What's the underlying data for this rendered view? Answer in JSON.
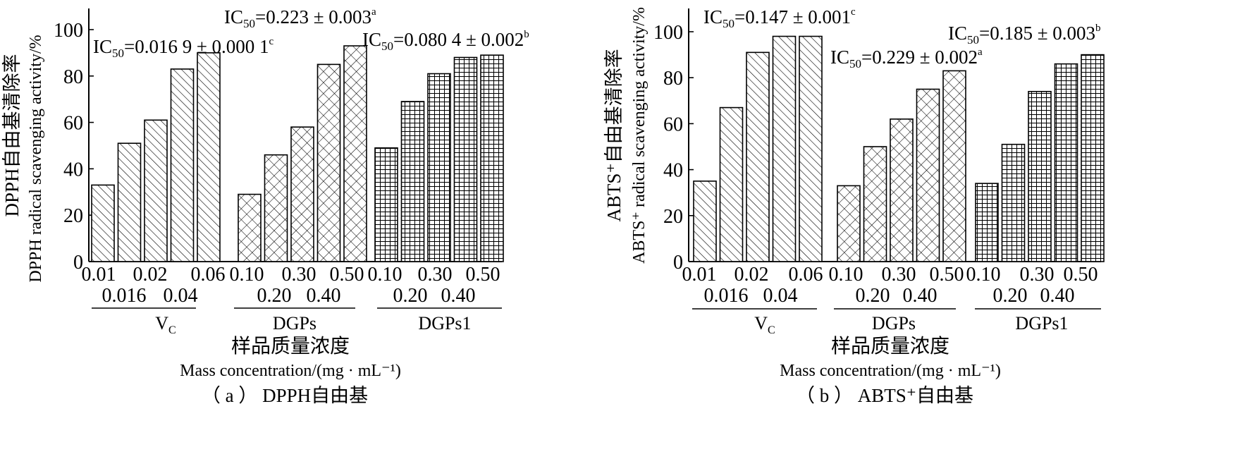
{
  "chart_data": [
    {
      "type": "bar",
      "caption": "（ a ） DPPH自由基",
      "ylabel_cn": "DPPH自由基清除率",
      "ylabel_en": "DPPH radical scavenging activity/%",
      "xlabel_cn": "样品质量浓度",
      "xlabel_en": "Mass concentration/(mg · mL⁻¹)",
      "ylim": [
        0,
        110
      ],
      "yticks": [
        0,
        20,
        40,
        60,
        80,
        100
      ],
      "groups": [
        {
          "name": "VC",
          "name_main": "V",
          "name_sub": "C",
          "pattern": "diag",
          "concentrations_row1": [
            "0.01",
            "0.02",
            "0.06"
          ],
          "concentrations_row2": [
            "0.016",
            "0.04"
          ],
          "values": [
            33,
            51,
            61,
            83,
            90
          ],
          "ic50": {
            "prefix": "IC",
            "sub": "50",
            "text": "=0.016 9 ± 0.000 1",
            "sup": "c"
          }
        },
        {
          "name": "DGPs",
          "pattern": "cross",
          "concentrations_row1": [
            "0.10",
            "0.30",
            "0.50"
          ],
          "concentrations_row2": [
            "0.20",
            "0.40"
          ],
          "values": [
            29,
            46,
            58,
            85,
            93
          ],
          "ic50": {
            "prefix": "IC",
            "sub": "50",
            "text": "=0.223 ± 0.003",
            "sup": "a"
          }
        },
        {
          "name": "DGPs1",
          "pattern": "grid",
          "concentrations_row1": [
            "0.10",
            "0.30",
            "0.50"
          ],
          "concentrations_row2": [
            "0.20",
            "0.40"
          ],
          "values": [
            49,
            69,
            81,
            88,
            89
          ],
          "ic50": {
            "prefix": "IC",
            "sub": "50",
            "text": "=0.080 4 ± 0.002",
            "sup": "b"
          }
        }
      ]
    },
    {
      "type": "bar",
      "caption": "（ b ） ABTS⁺自由基",
      "ylabel_cn": "ABTS⁺自由基清除率",
      "ylabel_en": "ABTS⁺ radical scavenging activity/%",
      "xlabel_cn": "样品质量浓度",
      "xlabel_en": "Mass concentration/(mg · mL⁻¹)",
      "ylim": [
        0,
        110
      ],
      "yticks": [
        0,
        20,
        40,
        60,
        80,
        100
      ],
      "groups": [
        {
          "name": "VC",
          "name_main": "V",
          "name_sub": "C",
          "pattern": "diag",
          "concentrations_row1": [
            "0.01",
            "0.02",
            "0.06"
          ],
          "concentrations_row2": [
            "0.016",
            "0.04"
          ],
          "values": [
            35,
            67,
            91,
            98,
            98
          ],
          "ic50": {
            "prefix": "IC",
            "sub": "50",
            "text": "=0.147 ± 0.001",
            "sup": "c"
          }
        },
        {
          "name": "DGPs",
          "pattern": "cross",
          "concentrations_row1": [
            "0.10",
            "0.30",
            "0.50"
          ],
          "concentrations_row2": [
            "0.20",
            "0.40"
          ],
          "values": [
            33,
            50,
            62,
            75,
            83
          ],
          "ic50": {
            "prefix": "IC",
            "sub": "50",
            "text": "=0.229 ± 0.002",
            "sup": "a"
          }
        },
        {
          "name": "DGPs1",
          "pattern": "grid",
          "concentrations_row1": [
            "0.10",
            "0.30",
            "0.50"
          ],
          "concentrations_row2": [
            "0.20",
            "0.40"
          ],
          "values": [
            34,
            51,
            74,
            86,
            90
          ],
          "ic50": {
            "prefix": "IC",
            "sub": "50",
            "text": "=0.185 ± 0.003",
            "sup": "b"
          }
        }
      ]
    }
  ]
}
